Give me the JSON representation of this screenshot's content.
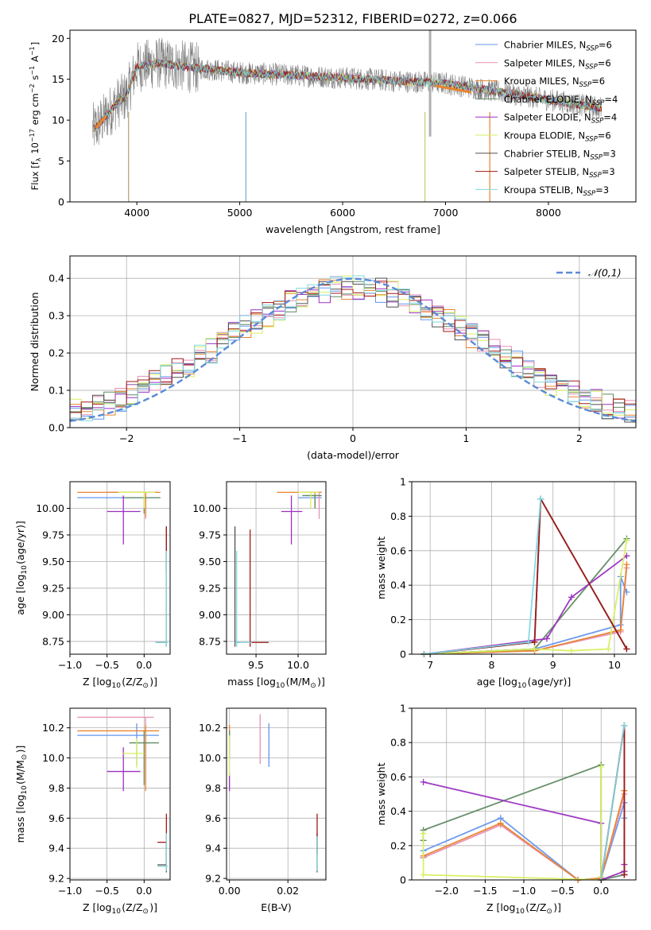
{
  "figure": {
    "title": "PLATE=0827, MJD=52312, FIBERID=0272, z=0.066"
  },
  "model_colors": [
    "#6495ed",
    "#e88fb4",
    "#e8842c",
    "#5f8a62",
    "#9b30c0",
    "#d6f060",
    "#505050",
    "#a01818",
    "#80d8e0"
  ],
  "chart_data": [
    {
      "id": "spectrum",
      "type": "line",
      "xlabel": "wavelength [Angstrom, rest frame]",
      "ylabel": "Flux [f$_\\lambda$ 10$^{-17}$ erg cm$^{-2}$ s$^{-1}$ A$^{-1}$]",
      "xlim": [
        3350,
        8850
      ],
      "ylim": [
        0,
        21
      ],
      "xticks": [
        4000,
        5000,
        6000,
        7000,
        8000
      ],
      "yticks": [
        0,
        5,
        10,
        15,
        20
      ],
      "grid": false,
      "legend_position": "top-right",
      "legend": [
        {
          "label": "Chabrier MILES, N_SSP=6"
        },
        {
          "label": "Salpeter MILES, N_SSP=6"
        },
        {
          "label": "Kroupa MILES, N_SSP=6"
        },
        {
          "label": "Chabrier ELODIE, N_SSP=4"
        },
        {
          "label": "Salpeter ELODIE, N_SSP=4"
        },
        {
          "label": "Kroupa ELODIE, N_SSP=6"
        },
        {
          "label": "Chabrier STELIB, N_SSP=3"
        },
        {
          "label": "Salpeter STELIB, N_SSP=3"
        },
        {
          "label": "Kroupa STELIB, N_SSP=3"
        }
      ],
      "data_envelope": {
        "x": [
          3600,
          3700,
          3800,
          3900,
          4000,
          4200,
          4500,
          5000,
          5500,
          6000,
          6500,
          7000,
          7500,
          8000,
          8500
        ],
        "y": [
          9,
          10.5,
          12,
          13,
          16.5,
          17,
          16.5,
          15.8,
          15.5,
          15.2,
          14.8,
          14.5,
          13.5,
          12.5,
          11.5
        ]
      }
    },
    {
      "id": "residuals",
      "type": "area",
      "xlabel": "(data-model)/error",
      "ylabel": "Normed distribution",
      "xlim": [
        -2.5,
        2.5
      ],
      "ylim": [
        0,
        0.46
      ],
      "xticks": [
        -2,
        -1,
        0,
        1,
        2
      ],
      "yticks": [
        0.0,
        0.1,
        0.2,
        0.3,
        0.4
      ],
      "grid": true,
      "legend_position": "top-right",
      "reference_label": "$\\mathcal{N}(0,1)$"
    },
    {
      "id": "age_vs_Z",
      "type": "scatter",
      "xlabel": "Z [log$_{10}$(Z/Z$_\\odot$)]",
      "ylabel": "age  [log$_{10}$(age/yr)]",
      "xlim": [
        -1.0,
        0.35
      ],
      "ylim": [
        8.63,
        10.25
      ],
      "xticks": [
        -1.0,
        -0.5,
        0.0
      ],
      "xticklabels": [
        "−1.0",
        "−0.5",
        "0.0"
      ],
      "yticks": [
        8.75,
        9.0,
        9.25,
        9.5,
        9.75,
        10.0
      ],
      "yticklabels": [
        "8.75",
        "9.00",
        "9.25",
        "9.50",
        "9.75",
        "10.00"
      ],
      "grid": true,
      "points": [
        {
          "m": 0,
          "x": -0.1,
          "y": 10.1,
          "xe": [
            -0.9,
            0.2
          ],
          "ye": [
            10.1,
            10.1
          ]
        },
        {
          "m": 1,
          "x": 0.02,
          "y": 10.15,
          "xe": [
            -0.5,
            0.18
          ],
          "ye": [
            9.9,
            10.15
          ]
        },
        {
          "m": 2,
          "x": 0.02,
          "y": 10.15,
          "xe": [
            -0.9,
            0.22
          ],
          "ye": [
            9.92,
            10.15
          ]
        },
        {
          "m": 3,
          "x": 0.0,
          "y": 10.1,
          "xe": [
            -0.3,
            0.22
          ],
          "ye": [
            9.95,
            10.1
          ]
        },
        {
          "m": 4,
          "x": -0.28,
          "y": 9.97,
          "xe": [
            -0.5,
            -0.05
          ],
          "ye": [
            9.66,
            10.12
          ]
        },
        {
          "m": 5,
          "x": 0.0,
          "y": 10.15,
          "xe": [
            -0.35,
            0.15
          ],
          "ye": [
            10.0,
            10.15
          ]
        },
        {
          "m": 6,
          "x": 0.3,
          "y": 8.74,
          "xe": [
            0.16,
            0.3
          ],
          "ye": [
            8.7,
            9.83
          ]
        },
        {
          "m": 7,
          "x": 0.3,
          "y": 9.58,
          "xe": [
            0.3,
            0.3
          ],
          "ye": [
            9.4,
            9.83
          ]
        },
        {
          "m": 8,
          "x": 0.3,
          "y": 8.74,
          "xe": [
            0.15,
            0.32
          ],
          "ye": [
            8.7,
            9.6
          ]
        }
      ]
    },
    {
      "id": "age_vs_mass",
      "type": "scatter",
      "xlabel": "mass [log$_{10}$(M/M$_\\odot$)]",
      "ylabel": "",
      "xlim": [
        9.15,
        10.33
      ],
      "ylim": [
        8.63,
        10.25
      ],
      "xticks": [
        9.5,
        10.0
      ],
      "xticklabels": [
        "9.5",
        "10.0"
      ],
      "yticks": [
        8.75,
        9.0,
        9.25,
        9.5,
        9.75,
        10.0
      ],
      "yticklabels": [
        "8.75",
        "9.00",
        "9.25",
        "9.50",
        "9.75",
        "10.00"
      ],
      "grid": true,
      "points": [
        {
          "m": 0,
          "x": 10.15,
          "y": 10.1,
          "xe": [
            10.0,
            10.28
          ],
          "ye": [
            10.1,
            10.1
          ]
        },
        {
          "m": 1,
          "x": 10.25,
          "y": 10.15,
          "xe": [
            10.0,
            10.28
          ],
          "ye": [
            9.9,
            10.15
          ]
        },
        {
          "m": 2,
          "x": 10.2,
          "y": 10.15,
          "xe": [
            9.75,
            10.28
          ],
          "ye": [
            10.0,
            10.15
          ]
        },
        {
          "m": 3,
          "x": 10.2,
          "y": 10.12,
          "xe": [
            10.05,
            10.28
          ],
          "ye": [
            10.0,
            10.12
          ]
        },
        {
          "m": 4,
          "x": 9.92,
          "y": 9.97,
          "xe": [
            9.8,
            10.05
          ],
          "ye": [
            9.66,
            10.12
          ]
        },
        {
          "m": 5,
          "x": 10.15,
          "y": 10.15,
          "xe": [
            10.0,
            10.25
          ],
          "ye": [
            10.0,
            10.15
          ]
        },
        {
          "m": 6,
          "x": 9.25,
          "y": 8.74,
          "xe": [
            9.25,
            9.3
          ],
          "ye": [
            8.7,
            9.83
          ]
        },
        {
          "m": 7,
          "x": 9.43,
          "y": 8.74,
          "xe": [
            9.43,
            9.65
          ],
          "ye": [
            8.7,
            9.8
          ]
        },
        {
          "m": 8,
          "x": 9.27,
          "y": 8.74,
          "xe": [
            9.25,
            9.45
          ],
          "ye": [
            8.7,
            9.6
          ]
        }
      ]
    },
    {
      "id": "mass_weight_vs_age",
      "type": "line",
      "xlabel": "age  [log$_{10}$(age/yr)]",
      "ylabel": "mass weight",
      "xlim": [
        6.7,
        10.35
      ],
      "ylim": [
        0,
        1.0
      ],
      "xticks": [
        7,
        8,
        9,
        10
      ],
      "yticks": [
        0.0,
        0.2,
        0.4,
        0.6,
        0.8,
        1.0
      ],
      "grid": true,
      "series": [
        {
          "m": 0,
          "x": [
            6.9,
            8.7,
            10.1,
            10.1,
            10.2
          ],
          "y": [
            0.0,
            0.03,
            0.17,
            0.45,
            0.36
          ]
        },
        {
          "m": 1,
          "x": [
            6.9,
            8.7,
            10.1,
            10.2
          ],
          "y": [
            0.0,
            0.02,
            0.13,
            0.5
          ]
        },
        {
          "m": 2,
          "x": [
            6.9,
            8.7,
            10.1,
            10.2
          ],
          "y": [
            0.0,
            0.02,
            0.14,
            0.52
          ]
        },
        {
          "m": 3,
          "x": [
            6.9,
            8.7,
            10.2
          ],
          "y": [
            0.0,
            0.03,
            0.67
          ]
        },
        {
          "m": 4,
          "x": [
            6.9,
            8.9,
            9.3,
            10.2
          ],
          "y": [
            0.0,
            0.09,
            0.33,
            0.57
          ]
        },
        {
          "m": 5,
          "x": [
            6.9,
            8.7,
            9.3,
            9.9,
            10.2
          ],
          "y": [
            0.0,
            0.03,
            0.02,
            0.03,
            0.66
          ]
        },
        {
          "m": 6,
          "x": [
            6.9,
            8.7,
            8.8,
            10.2
          ],
          "y": [
            0.0,
            0.07,
            0.9,
            0.03
          ]
        },
        {
          "m": 7,
          "x": [
            6.9,
            8.7,
            8.8,
            10.2
          ],
          "y": [
            0.0,
            0.07,
            0.9,
            0.03
          ]
        },
        {
          "m": 8,
          "x": [
            6.9,
            8.6,
            8.8,
            8.8
          ],
          "y": [
            0.0,
            0.07,
            0.9,
            0.9
          ]
        }
      ]
    },
    {
      "id": "mass_vs_Z",
      "type": "scatter",
      "xlabel": "Z [log$_{10}$(Z/Z$_\\odot$)]",
      "ylabel": "mass [log$_{10}$(M/M$_\\odot$)]",
      "xlim": [
        -1.0,
        0.35
      ],
      "ylim": [
        9.19,
        10.33
      ],
      "xticks": [
        -1.0,
        -0.5,
        0.0
      ],
      "xticklabels": [
        "−1.0",
        "−0.5",
        "0.0"
      ],
      "yticks": [
        9.2,
        9.4,
        9.6,
        9.8,
        10.0,
        10.2
      ],
      "yticklabels": [
        "9.2",
        "9.4",
        "9.6",
        "9.8",
        "10.0",
        "10.2"
      ],
      "grid": true,
      "points": [
        {
          "m": 0,
          "x": -0.1,
          "y": 10.15,
          "xe": [
            -0.9,
            0.2
          ],
          "ye": [
            9.95,
            10.23
          ]
        },
        {
          "m": 1,
          "x": 0.02,
          "y": 10.27,
          "xe": [
            -0.9,
            0.13
          ],
          "ye": [
            9.82,
            10.27
          ]
        },
        {
          "m": 2,
          "x": 0.02,
          "y": 10.18,
          "xe": [
            -0.9,
            0.2
          ],
          "ye": [
            9.78,
            10.22
          ]
        },
        {
          "m": 3,
          "x": 0.0,
          "y": 10.1,
          "xe": [
            -0.2,
            0.2
          ],
          "ye": [
            9.82,
            10.18
          ]
        },
        {
          "m": 4,
          "x": -0.28,
          "y": 9.91,
          "xe": [
            -0.5,
            -0.05
          ],
          "ye": [
            9.78,
            10.07
          ]
        },
        {
          "m": 5,
          "x": -0.1,
          "y": 10.03,
          "xe": [
            -0.3,
            0.0
          ],
          "ye": [
            9.93,
            10.13
          ]
        },
        {
          "m": 6,
          "x": 0.3,
          "y": 9.29,
          "xe": [
            0.18,
            0.3
          ],
          "ye": [
            9.24,
            9.43
          ]
        },
        {
          "m": 7,
          "x": 0.3,
          "y": 9.44,
          "xe": [
            0.18,
            0.3
          ],
          "ye": [
            9.26,
            9.63
          ]
        },
        {
          "m": 8,
          "x": 0.3,
          "y": 9.28,
          "xe": [
            0.18,
            0.32
          ],
          "ye": [
            9.25,
            9.5
          ]
        }
      ]
    },
    {
      "id": "mass_vs_EBV",
      "type": "scatter",
      "xlabel": "E(B-V)",
      "ylabel": "",
      "xlim": [
        -0.001,
        0.033
      ],
      "ylim": [
        9.19,
        10.33
      ],
      "xticks": [
        0.0,
        0.02
      ],
      "xticklabels": [
        "0.00",
        "0.02"
      ],
      "yticks": [
        9.2,
        9.4,
        9.6,
        9.8,
        10.0,
        10.2
      ],
      "yticklabels": [
        "9.2",
        "9.4",
        "9.6",
        "9.8",
        "10.0",
        "10.2"
      ],
      "grid": true,
      "points": [
        {
          "m": 0,
          "x": 0.0135,
          "y": 10.1,
          "xe": [
            0.0135,
            0.0135
          ],
          "ye": [
            9.94,
            10.23
          ]
        },
        {
          "m": 1,
          "x": 0.0105,
          "y": 10.1,
          "xe": [
            0.0105,
            0.0105
          ],
          "ye": [
            9.96,
            10.29
          ]
        },
        {
          "m": 2,
          "x": 0.0,
          "y": 10.2,
          "xe": [
            0.0,
            0.0
          ],
          "ye": [
            10.1,
            10.22
          ]
        },
        {
          "m": 3,
          "x": 0.0,
          "y": 10.1,
          "xe": [
            0.0,
            0.0
          ],
          "ye": [
            10.0,
            10.18
          ]
        },
        {
          "m": 4,
          "x": 0.0,
          "y": 9.84,
          "xe": [
            0.0,
            0.0
          ],
          "ye": [
            9.78,
            9.9
          ]
        },
        {
          "m": 5,
          "x": 0.0,
          "y": 10.0,
          "xe": [
            0.0,
            0.0
          ],
          "ye": [
            9.88,
            10.15
          ]
        },
        {
          "m": 6,
          "x": 0.03,
          "y": 9.4,
          "xe": [
            0.03,
            0.03
          ],
          "ye": [
            9.24,
            9.5
          ]
        },
        {
          "m": 7,
          "x": 0.03,
          "y": 9.5,
          "xe": [
            0.03,
            0.03
          ],
          "ye": [
            9.36,
            9.63
          ]
        },
        {
          "m": 8,
          "x": 0.03,
          "y": 9.35,
          "xe": [
            0.03,
            0.03
          ],
          "ye": [
            9.25,
            9.48
          ]
        }
      ]
    },
    {
      "id": "mass_weight_vs_Z",
      "type": "line",
      "xlabel": "Z [log$_{10}$(Z/Z$_\\odot$)]",
      "ylabel": "mass weight",
      "xlim": [
        -2.45,
        0.45
      ],
      "ylim": [
        0,
        1.0
      ],
      "xticks": [
        -2.0,
        -1.5,
        -1.0,
        -0.5,
        0.0
      ],
      "xticklabels": [
        "−2.0",
        "−1.5",
        "−1.0",
        "−0.5",
        "0.0"
      ],
      "yticks": [
        0.0,
        0.2,
        0.4,
        0.6,
        0.8,
        1.0
      ],
      "grid": true,
      "series": [
        {
          "m": 0,
          "x": [
            -2.3,
            -2.3,
            -1.3,
            -0.3,
            0.0,
            0.3,
            0.3
          ],
          "y": [
            0.13,
            0.17,
            0.36,
            0.0,
            0.01,
            0.45,
            0.36
          ]
        },
        {
          "m": 1,
          "x": [
            -2.3,
            -1.3,
            -0.3,
            0.0,
            0.3
          ],
          "y": [
            0.13,
            0.32,
            0.0,
            0.01,
            0.5
          ]
        },
        {
          "m": 2,
          "x": [
            -2.3,
            -1.3,
            -0.3,
            0.0,
            0.3
          ],
          "y": [
            0.14,
            0.33,
            0.0,
            0.01,
            0.52
          ]
        },
        {
          "m": 3,
          "x": [
            -2.3,
            -2.3,
            0.0,
            0.0,
            0.3
          ],
          "y": [
            0.23,
            0.29,
            0.67,
            0.0,
            0.03
          ]
        },
        {
          "m": 4,
          "x": [
            -2.3,
            0.0,
            0.0,
            0.3,
            0.3
          ],
          "y": [
            0.57,
            0.33,
            0.0,
            0.05,
            0.09
          ]
        },
        {
          "m": 5,
          "x": [
            -2.3,
            -2.3,
            0.0,
            0.0,
            0.0
          ],
          "y": [
            0.27,
            0.03,
            0.0,
            0.02,
            0.66
          ]
        },
        {
          "m": 6,
          "x": [
            0.0,
            0.3,
            0.3
          ],
          "y": [
            0.0,
            0.9,
            0.03
          ]
        },
        {
          "m": 7,
          "x": [
            0.0,
            0.3,
            0.3
          ],
          "y": [
            0.0,
            0.9,
            0.03
          ]
        },
        {
          "m": 8,
          "x": [
            0.0,
            0.3,
            0.3
          ],
          "y": [
            0.0,
            0.9,
            0.9
          ]
        }
      ]
    }
  ]
}
